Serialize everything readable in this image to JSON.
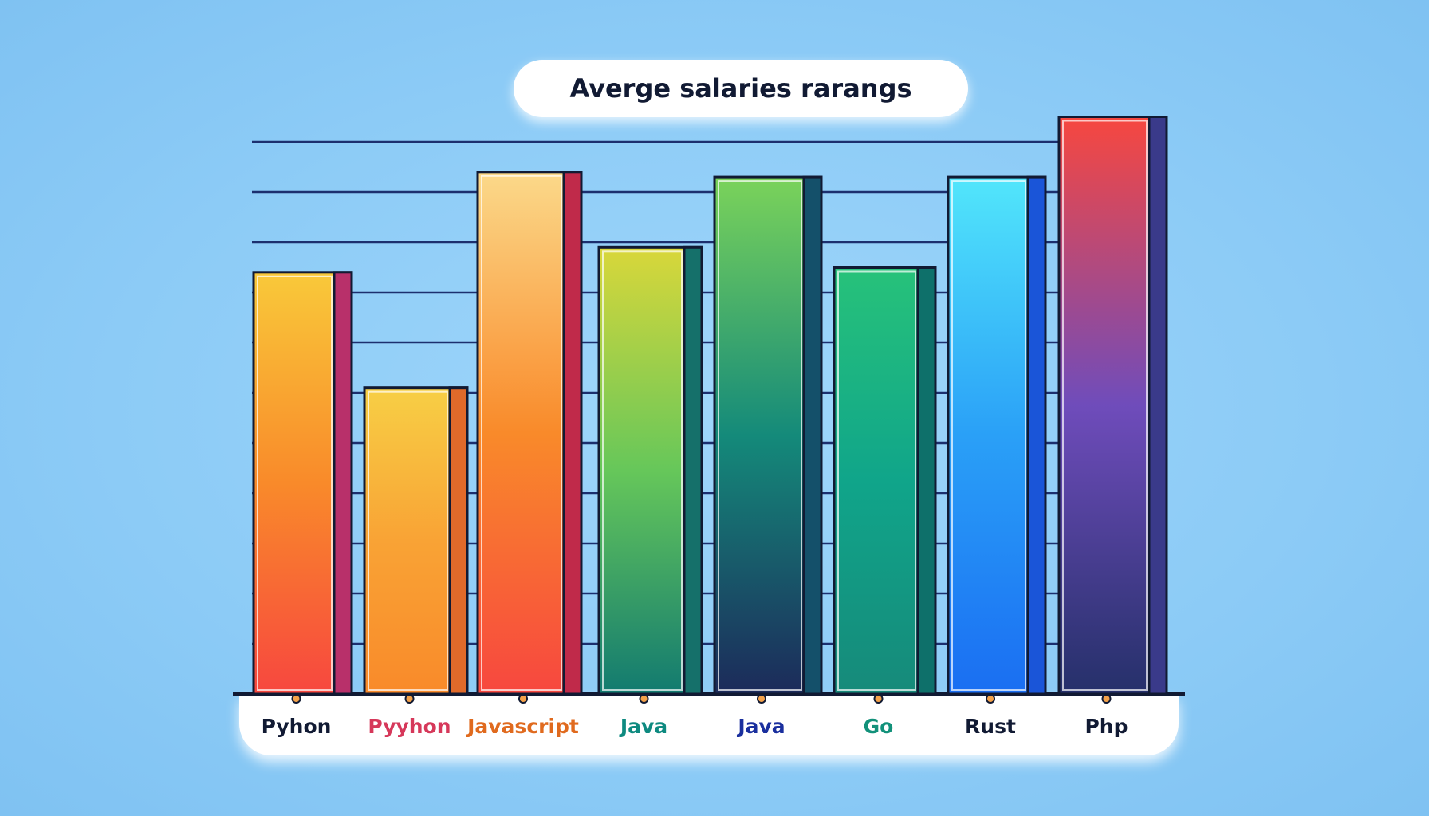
{
  "chart_data": {
    "type": "bar",
    "title": "Averge salaries rarangs",
    "xlabel": "",
    "ylabel": "",
    "categories": [
      "Pyhon",
      "Pyyhon",
      "Javascript",
      "Java",
      "Java",
      "Go",
      "Rust",
      "Php"
    ],
    "values": [
      8.4,
      6.1,
      10.4,
      8.9,
      10.3,
      8.5,
      10.3,
      11.5
    ],
    "ylim": [
      0,
      11
    ],
    "grid": true,
    "legend": "none",
    "label_colors": [
      "#111a33",
      "#d6385a",
      "#e06a1e",
      "#0e8a80",
      "#1a2f9e",
      "#12917a",
      "#111a33",
      "#111a33"
    ],
    "bar_gradients": [
      [
        "#f9c93a",
        "#f98a2a",
        "#f7473f"
      ],
      [
        "#f7cf45",
        "#f9a335",
        "#f98a2a"
      ],
      [
        "#fbd98a",
        "#f98a2a",
        "#f7473f"
      ],
      [
        "#d9d73a",
        "#66c75a",
        "#127a70"
      ],
      [
        "#7bd35a",
        "#148a7a",
        "#1c2a5a"
      ],
      [
        "#27c27a",
        "#10a58a",
        "#168a7a"
      ],
      [
        "#52e6fb",
        "#2aa0f7",
        "#1a6ef2"
      ],
      [
        "#f7473f",
        "#6f4cbb",
        "#25306a"
      ]
    ],
    "side_colors": [
      "#b8306a",
      "#e06a2a",
      "#c02a4a",
      "#15706a",
      "#14506a",
      "#0e706a",
      "#1a55d8",
      "#3a3a8a"
    ]
  }
}
